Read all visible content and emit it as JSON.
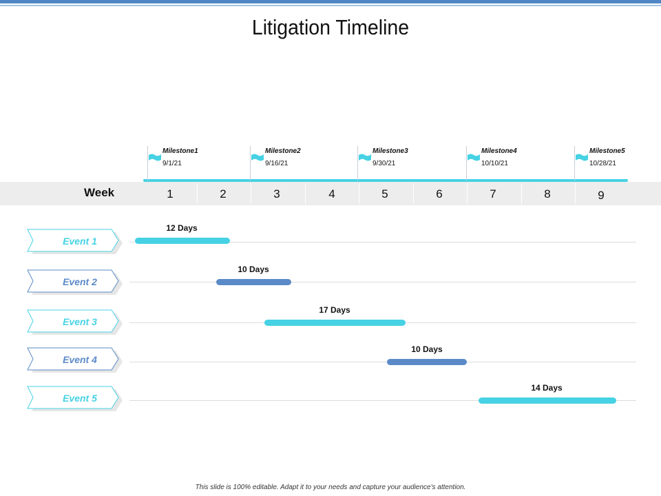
{
  "title": "Litigation Timeline",
  "colors": {
    "cyan": "#46d2e4",
    "blue": "#5b8ac8",
    "band": "#ededed",
    "topRule": "#4f86c6"
  },
  "milestones": [
    {
      "name": "Milestone1",
      "date": "9/1/21",
      "icon": "flag-icon"
    },
    {
      "name": "Milestone2",
      "date": "9/16/21",
      "icon": "flag-icon"
    },
    {
      "name": "Milestone3",
      "date": "9/30/21",
      "icon": "flag-icon"
    },
    {
      "name": "Milestone4",
      "date": "10/10/21",
      "icon": "flag-icon"
    },
    {
      "name": "Milestone5",
      "date": "10/28/21",
      "icon": "flag-icon"
    }
  ],
  "week": {
    "label": "Week",
    "numbers": [
      "1",
      "2",
      "3",
      "4",
      "5",
      "6",
      "7",
      "8",
      "9"
    ]
  },
  "events": [
    {
      "label": "Event 1",
      "duration": "12 Days",
      "color": "#46d2e4"
    },
    {
      "label": "Event 2",
      "duration": "10 Days",
      "color": "#5b8ac8"
    },
    {
      "label": "Event 3",
      "duration": "17 Days",
      "color": "#46d2e4"
    },
    {
      "label": "Event 4",
      "duration": "10 Days",
      "color": "#5b8ac8"
    },
    {
      "label": "Event 5",
      "duration": "14 Days",
      "color": "#46d2e4"
    }
  ],
  "footer": "This slide is 100% editable. Adapt it to your needs and capture your audience's attention."
}
